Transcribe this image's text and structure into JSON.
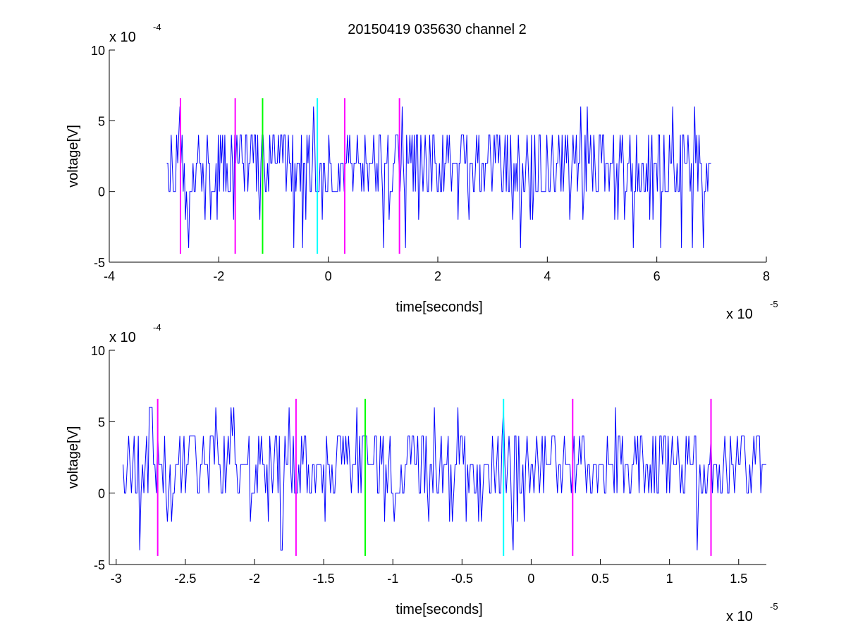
{
  "title": "20150419 035630 channel 2",
  "colors": {
    "signal": "#0000ff",
    "marker_magenta": "#ff00ff",
    "marker_green": "#00ff00",
    "marker_cyan": "#00ffff",
    "axes": "#000000"
  },
  "chart_data": [
    {
      "type": "line",
      "title": "20150419 035630 channel 2",
      "xlabel": "time[seconds]",
      "ylabel": "voltage[V]",
      "x_exponent_label": "x 10",
      "x_exponent": "-5",
      "y_exponent_label": "x 10",
      "y_exponent": "-4",
      "x_scale": 1e-05,
      "y_scale": 0.0001,
      "xlim": [
        -4,
        8
      ],
      "ylim": [
        -5,
        10
      ],
      "xticks": [
        -4,
        -2,
        0,
        2,
        4,
        6,
        8
      ],
      "xtick_labels": [
        "-4",
        "-2",
        "0",
        "2",
        "4",
        "6",
        "8"
      ],
      "yticks": [
        -5,
        0,
        5,
        10
      ],
      "ytick_labels": [
        "-5",
        "0",
        "5",
        "10"
      ],
      "grid": false,
      "series": [
        {
          "x_range": [
            -2.95,
            7.0
          ],
          "sample_step": 0.02,
          "quantization": 2,
          "typical_range": [
            0,
            4
          ],
          "peak_max": 6,
          "peak_min": -4
        }
      ],
      "markers": [
        {
          "x": -2.7,
          "color": "#ff00ff",
          "ymin": -4.4,
          "ymax": 6.6
        },
        {
          "x": -1.7,
          "color": "#ff00ff",
          "ymin": -4.4,
          "ymax": 6.6
        },
        {
          "x": -1.2,
          "color": "#00ff00",
          "ymin": -4.4,
          "ymax": 6.6
        },
        {
          "x": -0.2,
          "color": "#00ffff",
          "ymin": -4.4,
          "ymax": 6.6
        },
        {
          "x": 0.3,
          "color": "#ff00ff",
          "ymin": -4.4,
          "ymax": 6.6
        },
        {
          "x": 1.3,
          "color": "#ff00ff",
          "ymin": -4.4,
          "ymax": 6.6
        }
      ]
    },
    {
      "type": "line",
      "xlabel": "time[seconds]",
      "ylabel": "voltage[V]",
      "x_exponent_label": "x 10",
      "x_exponent": "-5",
      "y_exponent_label": "x 10",
      "y_exponent": "-4",
      "x_scale": 1e-05,
      "y_scale": 0.0001,
      "xlim": [
        -3.05,
        1.7
      ],
      "ylim": [
        -5,
        10
      ],
      "xticks": [
        -3,
        -2.5,
        -2,
        -1.5,
        -1,
        -0.5,
        0,
        0.5,
        1,
        1.5
      ],
      "xtick_labels": [
        "-3",
        "-2.5",
        "-2",
        "-1.5",
        "-1",
        "-0.5",
        "0",
        "0.5",
        "1",
        "1.5"
      ],
      "yticks": [
        -5,
        0,
        5,
        10
      ],
      "ytick_labels": [
        "-5",
        "0",
        "5",
        "10"
      ],
      "grid": false,
      "series": [
        {
          "x_range": [
            -2.95,
            1.7
          ],
          "sample_step": 0.01,
          "quantization": 2,
          "typical_range": [
            0,
            4
          ],
          "peak_max": 6,
          "peak_min": -4
        }
      ],
      "markers": [
        {
          "x": -2.7,
          "color": "#ff00ff",
          "ymin": -4.4,
          "ymax": 6.6
        },
        {
          "x": -1.7,
          "color": "#ff00ff",
          "ymin": -4.4,
          "ymax": 6.6
        },
        {
          "x": -1.2,
          "color": "#00ff00",
          "ymin": -4.4,
          "ymax": 6.6
        },
        {
          "x": -0.2,
          "color": "#00ffff",
          "ymin": -4.4,
          "ymax": 6.6
        },
        {
          "x": 0.3,
          "color": "#ff00ff",
          "ymin": -4.4,
          "ymax": 6.6
        },
        {
          "x": 1.3,
          "color": "#ff00ff",
          "ymin": -4.4,
          "ymax": 6.6
        }
      ]
    }
  ]
}
